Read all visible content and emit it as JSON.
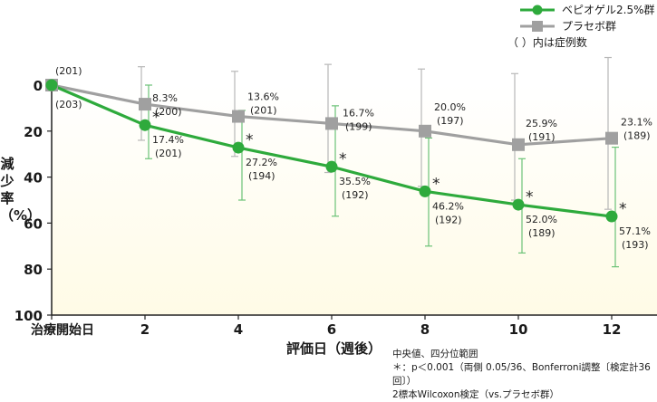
{
  "chart_data": {
    "type": "line",
    "title": "",
    "xlabel": "評価日（週後）",
    "ylabel": "減少率（%）",
    "x": [
      0,
      2,
      4,
      6,
      8,
      10,
      12
    ],
    "x_tick_labels": [
      "治療開始日",
      "2",
      "4",
      "6",
      "8",
      "10",
      "12"
    ],
    "y_ticks": [
      0,
      20,
      40,
      60,
      80,
      100
    ],
    "ylim": [
      0,
      100
    ],
    "y_inverted": true,
    "legend_position": "top-right",
    "series": [
      {
        "name": "ベピオゲル2.5%群",
        "color": "#2eaa3c",
        "marker": "circle",
        "values": [
          0,
          17.4,
          27.2,
          35.5,
          46.2,
          52.0,
          57.1
        ],
        "value_labels": [
          "",
          "17.4%",
          "27.2%",
          "35.5%",
          "46.2%",
          "52.0%",
          "57.1%"
        ],
        "n": [
          "203",
          "201",
          "194",
          "192",
          "192",
          "189",
          "193"
        ],
        "iqr_low": [
          0,
          0,
          11,
          9,
          23,
          32,
          27
        ],
        "iqr_high": [
          0,
          32,
          50,
          57,
          70,
          73,
          79
        ],
        "significant": [
          false,
          true,
          true,
          true,
          true,
          true,
          true
        ]
      },
      {
        "name": "プラセボ群",
        "color": "#a0a0a0",
        "marker": "square",
        "values": [
          0,
          8.3,
          13.6,
          16.7,
          20.0,
          25.9,
          23.1
        ],
        "value_labels": [
          "",
          "8.3%",
          "13.6%",
          "16.7%",
          "20.0%",
          "25.9%",
          "23.1%"
        ],
        "n": [
          "201",
          "200",
          "201",
          "199",
          "197",
          "191",
          "189"
        ],
        "iqr_low": [
          0,
          -8,
          -6,
          -9,
          -7,
          -5,
          -12
        ],
        "iqr_high": [
          0,
          24,
          31,
          38,
          44,
          50,
          54
        ],
        "significant": [
          false,
          false,
          false,
          false,
          false,
          false,
          false
        ]
      }
    ],
    "legend_note": "（ ）内は症例数",
    "footnotes": [
      "中央値、四分位範囲",
      "＊：p＜0.001（両側 0.05/36、Bonferroni調整〔検定計36回〕）",
      "2標本Wilcoxon検定（vs.プラセボ群）"
    ],
    "significance_marker": "＊"
  }
}
